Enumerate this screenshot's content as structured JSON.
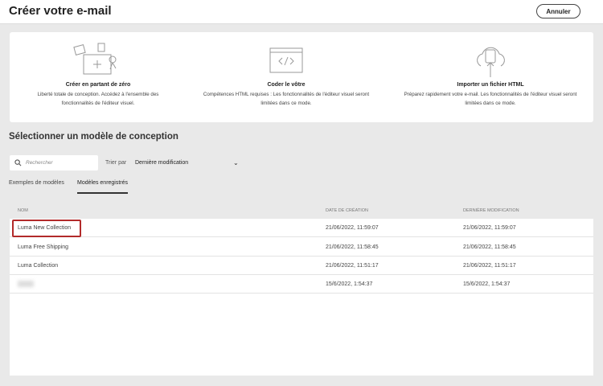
{
  "header": {
    "title": "Créer votre e-mail",
    "cancel_label": "Annuler"
  },
  "options": [
    {
      "title": "Créer en partant de zéro",
      "desc1": "Liberté totale de conception. Accédez à l'ensemble des",
      "desc2": "fonctionnalités de l'éditeur visuel.",
      "icon": "blank-canvas-icon"
    },
    {
      "title": "Coder le vôtre",
      "desc1": "Compétences HTML requises : Les fonctionnalités de l'éditeur visuel seront",
      "desc2": "limitées dans ce mode.",
      "icon": "code-window-icon"
    },
    {
      "title": "Importer un fichier HTML",
      "desc1": "Préparez rapidement votre e-mail. Les fonctionnalités de l'éditeur visuel seront",
      "desc2": "limitées dans ce mode.",
      "icon": "cloud-upload-icon"
    }
  ],
  "section_title": "Sélectionner un modèle de conception",
  "search": {
    "placeholder": "Rechercher"
  },
  "sort": {
    "label": "Trier par",
    "value": "Dernière modification"
  },
  "tabs": [
    {
      "label": "Exemples de modèles",
      "active": false
    },
    {
      "label": "Modèles enregistrés",
      "active": true
    }
  ],
  "table": {
    "columns": [
      "Nom",
      "Date de création",
      "Dernière modification"
    ],
    "rows": [
      {
        "name": "Luma New Collection",
        "created": "21/06/2022, 11:59:07",
        "modified": "21/06/2022, 11:59:07",
        "highlighted": true
      },
      {
        "name": "Luma Free Shipping",
        "created": "21/06/2022, 11:58:45",
        "modified": "21/06/2022, 11:58:45"
      },
      {
        "name": "Luma Collection",
        "created": "21/06/2022, 11:51:17",
        "modified": "21/06/2022, 11:51:17"
      },
      {
        "name": "",
        "created": "15/6/2022, 1:54:37",
        "modified": "15/6/2022, 1:54:37",
        "blurred": true
      }
    ]
  },
  "colors": {
    "highlight": "#b22a2a",
    "background": "#e9e9e9"
  }
}
